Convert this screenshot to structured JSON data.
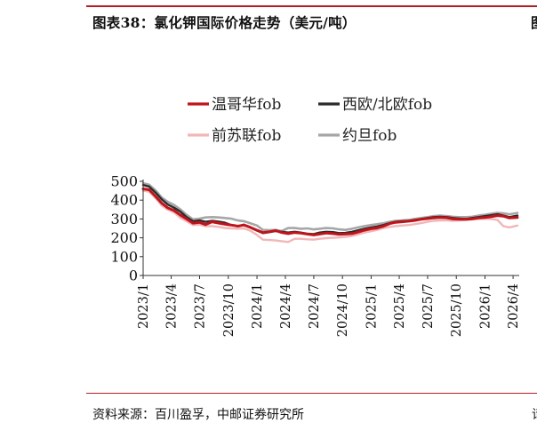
{
  "figure": {
    "title": "图表38：氯化钾国际价格走势（美元/吨）",
    "edge_glyph_top": "图",
    "source": "资料来源：百川盈孚，中邮证券研究所",
    "edge_glyph_bottom": "请"
  },
  "chart_data": {
    "type": "line",
    "title": "",
    "xlabel": "",
    "ylabel": "",
    "ylim": [
      0,
      500
    ],
    "yticks": [
      "0",
      "100",
      "200",
      "300",
      "400",
      "500"
    ],
    "xlim": [
      "2023-01-01",
      "2026-04-15"
    ],
    "xticks": [
      "2023/1",
      "2023/4",
      "2023/7",
      "2023/10",
      "2024/1",
      "2024/4",
      "2024/7",
      "2024/10",
      "2025/1",
      "2025/4",
      "2025/7",
      "2025/10",
      "2026/1",
      "2026/4"
    ],
    "legend_position": "top",
    "grid": false,
    "series": [
      {
        "name": "温哥华fob",
        "color": "#c0141b",
        "width": 3,
        "points": [
          [
            "2023-01-01",
            460
          ],
          [
            "2023-01-20",
            455
          ],
          [
            "2023-02-10",
            420
          ],
          [
            "2023-03-01",
            385
          ],
          [
            "2023-03-20",
            360
          ],
          [
            "2023-04-10",
            345
          ],
          [
            "2023-05-01",
            320
          ],
          [
            "2023-05-20",
            300
          ],
          [
            "2023-06-10",
            278
          ],
          [
            "2023-07-01",
            282
          ],
          [
            "2023-07-20",
            270
          ],
          [
            "2023-08-10",
            285
          ],
          [
            "2023-09-01",
            278
          ],
          [
            "2023-09-20",
            272
          ],
          [
            "2023-10-10",
            268
          ],
          [
            "2023-11-01",
            262
          ],
          [
            "2023-11-20",
            268
          ],
          [
            "2023-12-10",
            256
          ],
          [
            "2024-01-01",
            240
          ],
          [
            "2024-01-20",
            228
          ],
          [
            "2024-02-10",
            232
          ],
          [
            "2024-03-01",
            238
          ],
          [
            "2024-03-20",
            228
          ],
          [
            "2024-04-10",
            222
          ],
          [
            "2024-05-01",
            228
          ],
          [
            "2024-05-20",
            225
          ],
          [
            "2024-06-10",
            220
          ],
          [
            "2024-07-01",
            215
          ],
          [
            "2024-07-20",
            220
          ],
          [
            "2024-08-10",
            225
          ],
          [
            "2024-09-01",
            222
          ],
          [
            "2024-09-20",
            218
          ],
          [
            "2024-10-10",
            220
          ],
          [
            "2024-11-01",
            222
          ],
          [
            "2024-11-20",
            230
          ],
          [
            "2024-12-10",
            240
          ],
          [
            "2025-01-01",
            248
          ],
          [
            "2025-01-20",
            252
          ],
          [
            "2025-02-10",
            262
          ],
          [
            "2025-03-01",
            275
          ],
          [
            "2025-03-20",
            282
          ],
          [
            "2025-04-10",
            285
          ],
          [
            "2025-05-01",
            288
          ],
          [
            "2025-05-20",
            292
          ],
          [
            "2025-06-10",
            298
          ],
          [
            "2025-07-01",
            302
          ],
          [
            "2025-07-20",
            305
          ],
          [
            "2025-08-10",
            308
          ],
          [
            "2025-09-01",
            306
          ],
          [
            "2025-09-20",
            300
          ],
          [
            "2025-10-10",
            298
          ],
          [
            "2025-11-01",
            298
          ],
          [
            "2025-11-20",
            300
          ],
          [
            "2025-12-10",
            305
          ],
          [
            "2026-01-01",
            308
          ],
          [
            "2026-01-20",
            312
          ],
          [
            "2026-02-10",
            318
          ],
          [
            "2026-03-01",
            315
          ],
          [
            "2026-03-20",
            305
          ],
          [
            "2026-04-15",
            308
          ]
        ]
      },
      {
        "name": "西欧/北欧fob",
        "color": "#2b2b2b",
        "width": 2.4,
        "points": [
          [
            "2023-01-01",
            480
          ],
          [
            "2023-01-20",
            472
          ],
          [
            "2023-02-10",
            440
          ],
          [
            "2023-03-01",
            405
          ],
          [
            "2023-03-20",
            378
          ],
          [
            "2023-04-10",
            360
          ],
          [
            "2023-05-01",
            338
          ],
          [
            "2023-05-20",
            310
          ],
          [
            "2023-06-10",
            288
          ],
          [
            "2023-07-01",
            292
          ],
          [
            "2023-07-20",
            285
          ],
          [
            "2023-08-10",
            290
          ],
          [
            "2023-09-01",
            286
          ],
          [
            "2023-09-20",
            280
          ],
          [
            "2023-10-10",
            268
          ],
          [
            "2023-11-01",
            262
          ],
          [
            "2023-11-20",
            270
          ],
          [
            "2023-12-10",
            255
          ],
          [
            "2024-01-01",
            238
          ],
          [
            "2024-01-20",
            225
          ],
          [
            "2024-02-10",
            230
          ],
          [
            "2024-03-01",
            236
          ],
          [
            "2024-03-20",
            232
          ],
          [
            "2024-04-10",
            228
          ],
          [
            "2024-05-01",
            232
          ],
          [
            "2024-05-20",
            228
          ],
          [
            "2024-06-10",
            222
          ],
          [
            "2024-07-01",
            220
          ],
          [
            "2024-07-20",
            228
          ],
          [
            "2024-08-10",
            232
          ],
          [
            "2024-09-01",
            230
          ],
          [
            "2024-09-20",
            225
          ],
          [
            "2024-10-10",
            226
          ],
          [
            "2024-11-01",
            232
          ],
          [
            "2024-11-20",
            240
          ],
          [
            "2024-12-10",
            248
          ],
          [
            "2025-01-01",
            255
          ],
          [
            "2025-01-20",
            260
          ],
          [
            "2025-02-10",
            268
          ],
          [
            "2025-03-01",
            278
          ],
          [
            "2025-03-20",
            285
          ],
          [
            "2025-04-10",
            288
          ],
          [
            "2025-05-01",
            290
          ],
          [
            "2025-05-20",
            295
          ],
          [
            "2025-06-10",
            300
          ],
          [
            "2025-07-01",
            305
          ],
          [
            "2025-07-20",
            310
          ],
          [
            "2025-08-10",
            312
          ],
          [
            "2025-09-01",
            310
          ],
          [
            "2025-09-20",
            305
          ],
          [
            "2025-10-10",
            302
          ],
          [
            "2025-11-01",
            300
          ],
          [
            "2025-11-20",
            305
          ],
          [
            "2025-12-10",
            310
          ],
          [
            "2026-01-01",
            315
          ],
          [
            "2026-01-20",
            320
          ],
          [
            "2026-02-10",
            325
          ],
          [
            "2026-03-01",
            318
          ],
          [
            "2026-03-20",
            310
          ],
          [
            "2026-04-15",
            318
          ]
        ]
      },
      {
        "name": "前苏联fob",
        "color": "#f2b6b8",
        "width": 2.4,
        "points": [
          [
            "2023-01-01",
            450
          ],
          [
            "2023-01-20",
            445
          ],
          [
            "2023-02-10",
            410
          ],
          [
            "2023-03-01",
            372
          ],
          [
            "2023-03-20",
            350
          ],
          [
            "2023-04-10",
            335
          ],
          [
            "2023-05-01",
            305
          ],
          [
            "2023-05-20",
            288
          ],
          [
            "2023-06-10",
            268
          ],
          [
            "2023-07-01",
            270
          ],
          [
            "2023-07-20",
            262
          ],
          [
            "2023-08-10",
            262
          ],
          [
            "2023-09-01",
            258
          ],
          [
            "2023-09-20",
            252
          ],
          [
            "2023-10-10",
            250
          ],
          [
            "2023-11-01",
            248
          ],
          [
            "2023-11-20",
            250
          ],
          [
            "2023-12-10",
            238
          ],
          [
            "2024-01-01",
            215
          ],
          [
            "2024-01-20",
            190
          ],
          [
            "2024-02-10",
            188
          ],
          [
            "2024-03-01",
            186
          ],
          [
            "2024-03-20",
            182
          ],
          [
            "2024-04-10",
            178
          ],
          [
            "2024-05-01",
            195
          ],
          [
            "2024-05-20",
            195
          ],
          [
            "2024-06-10",
            192
          ],
          [
            "2024-07-01",
            190
          ],
          [
            "2024-07-20",
            195
          ],
          [
            "2024-08-10",
            198
          ],
          [
            "2024-09-01",
            200
          ],
          [
            "2024-09-20",
            202
          ],
          [
            "2024-10-10",
            205
          ],
          [
            "2024-11-01",
            210
          ],
          [
            "2024-11-20",
            218
          ],
          [
            "2024-12-10",
            228
          ],
          [
            "2025-01-01",
            235
          ],
          [
            "2025-01-20",
            242
          ],
          [
            "2025-02-10",
            252
          ],
          [
            "2025-03-01",
            258
          ],
          [
            "2025-03-20",
            262
          ],
          [
            "2025-04-10",
            265
          ],
          [
            "2025-05-01",
            268
          ],
          [
            "2025-05-20",
            272
          ],
          [
            "2025-06-10",
            278
          ],
          [
            "2025-07-01",
            285
          ],
          [
            "2025-07-20",
            290
          ],
          [
            "2025-08-10",
            292
          ],
          [
            "2025-09-01",
            292
          ],
          [
            "2025-09-20",
            290
          ],
          [
            "2025-10-10",
            292
          ],
          [
            "2025-11-01",
            295
          ],
          [
            "2025-11-20",
            298
          ],
          [
            "2025-12-10",
            300
          ],
          [
            "2026-01-01",
            302
          ],
          [
            "2026-01-20",
            300
          ],
          [
            "2026-02-10",
            295
          ],
          [
            "2026-03-01",
            262
          ],
          [
            "2026-03-20",
            255
          ],
          [
            "2026-04-15",
            265
          ]
        ]
      },
      {
        "name": "约旦fob",
        "color": "#a6a6a6",
        "width": 2.6,
        "points": [
          [
            "2023-01-01",
            490
          ],
          [
            "2023-01-20",
            482
          ],
          [
            "2023-02-10",
            452
          ],
          [
            "2023-03-01",
            415
          ],
          [
            "2023-03-20",
            392
          ],
          [
            "2023-04-10",
            375
          ],
          [
            "2023-05-01",
            350
          ],
          [
            "2023-05-20",
            322
          ],
          [
            "2023-06-10",
            298
          ],
          [
            "2023-07-01",
            302
          ],
          [
            "2023-07-20",
            308
          ],
          [
            "2023-08-10",
            310
          ],
          [
            "2023-09-01",
            308
          ],
          [
            "2023-09-20",
            305
          ],
          [
            "2023-10-10",
            302
          ],
          [
            "2023-11-01",
            292
          ],
          [
            "2023-11-20",
            288
          ],
          [
            "2023-12-10",
            278
          ],
          [
            "2024-01-01",
            265
          ],
          [
            "2024-01-20",
            242
          ],
          [
            "2024-02-10",
            240
          ],
          [
            "2024-03-01",
            242
          ],
          [
            "2024-03-20",
            236
          ],
          [
            "2024-04-10",
            252
          ],
          [
            "2024-05-01",
            252
          ],
          [
            "2024-05-20",
            248
          ],
          [
            "2024-06-10",
            250
          ],
          [
            "2024-07-01",
            245
          ],
          [
            "2024-07-20",
            248
          ],
          [
            "2024-08-10",
            252
          ],
          [
            "2024-09-01",
            250
          ],
          [
            "2024-09-20",
            245
          ],
          [
            "2024-10-10",
            242
          ],
          [
            "2024-11-01",
            248
          ],
          [
            "2024-11-20",
            255
          ],
          [
            "2024-12-10",
            262
          ],
          [
            "2025-01-01",
            268
          ],
          [
            "2025-01-20",
            272
          ],
          [
            "2025-02-10",
            278
          ],
          [
            "2025-03-01",
            285
          ],
          [
            "2025-03-20",
            290
          ],
          [
            "2025-04-10",
            292
          ],
          [
            "2025-05-01",
            295
          ],
          [
            "2025-05-20",
            300
          ],
          [
            "2025-06-10",
            305
          ],
          [
            "2025-07-01",
            310
          ],
          [
            "2025-07-20",
            315
          ],
          [
            "2025-08-10",
            318
          ],
          [
            "2025-09-01",
            315
          ],
          [
            "2025-09-20",
            312
          ],
          [
            "2025-10-10",
            310
          ],
          [
            "2025-11-01",
            310
          ],
          [
            "2025-11-20",
            312
          ],
          [
            "2025-12-10",
            318
          ],
          [
            "2026-01-01",
            322
          ],
          [
            "2026-01-20",
            328
          ],
          [
            "2026-02-10",
            332
          ],
          [
            "2026-03-01",
            330
          ],
          [
            "2026-03-20",
            325
          ],
          [
            "2026-04-15",
            332
          ]
        ]
      }
    ]
  }
}
